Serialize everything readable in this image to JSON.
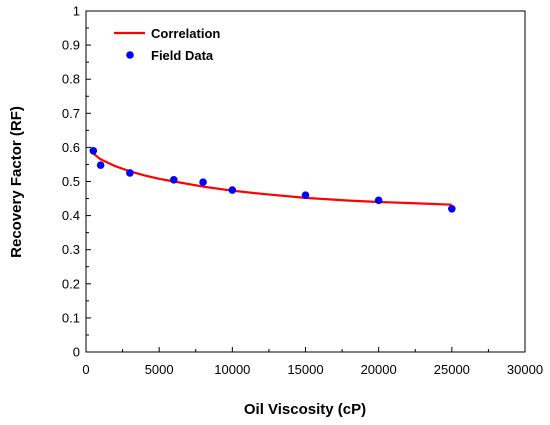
{
  "chart_data": {
    "type": "scatter",
    "xlabel": "Oil  Viscosity (cP)",
    "ylabel": "Recovery Factor (RF)",
    "xlim": [
      0,
      30000
    ],
    "ylim": [
      0,
      1
    ],
    "x_ticks": [
      0,
      5000,
      10000,
      15000,
      20000,
      25000,
      30000
    ],
    "y_ticks": [
      0,
      0.1,
      0.2,
      0.3,
      0.4,
      0.5,
      0.6,
      0.7,
      0.8,
      0.9,
      1
    ],
    "x_tick_labels": [
      "0",
      "5000",
      "10000",
      "15000",
      "20000",
      "25000",
      "30000"
    ],
    "y_tick_labels": [
      "0",
      "0.1",
      "0.2",
      "0.3",
      "0.4",
      "0.5",
      "0.6",
      "0.7",
      "0.8",
      "0.9",
      "1"
    ],
    "grid": false,
    "legend": {
      "placement": "top-left",
      "entries": [
        "Correlation",
        "Field Data"
      ]
    },
    "series": [
      {
        "name": "Correlation",
        "kind": "line",
        "color": "#ff0000",
        "x": [
          500,
          1000,
          2000,
          3000,
          4000,
          5000,
          6000,
          8000,
          10000,
          12000,
          15000,
          18000,
          20000,
          22000,
          25000
        ],
        "y": [
          0.582,
          0.565,
          0.545,
          0.53,
          0.518,
          0.508,
          0.5,
          0.485,
          0.473,
          0.464,
          0.452,
          0.444,
          0.44,
          0.437,
          0.432
        ]
      },
      {
        "name": "Field Data",
        "kind": "scatter",
        "color": "#0000ff",
        "x": [
          500,
          1000,
          3000,
          6000,
          8000,
          10000,
          15000,
          20000,
          25000
        ],
        "y": [
          0.59,
          0.548,
          0.525,
          0.505,
          0.498,
          0.475,
          0.46,
          0.445,
          0.42
        ]
      }
    ]
  }
}
